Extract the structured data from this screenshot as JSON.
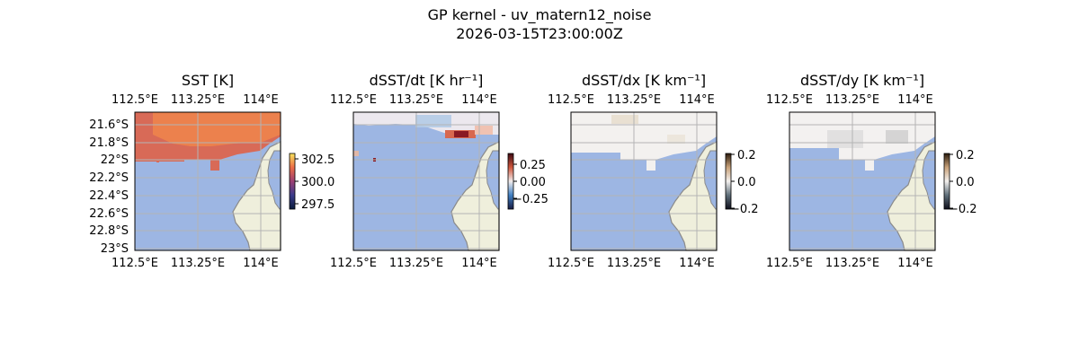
{
  "figure": {
    "title_line1": "GP kernel - uv_matern12_noise",
    "title_line2": "2026-03-15T23:00:00Z"
  },
  "colors": {
    "ocean": "#9db6e3",
    "land": "#efefdc",
    "coast": "#8a8a8a",
    "grid": "#b4b4b4"
  },
  "chart_data": [
    {
      "type": "heatmap",
      "title": "SST [K]",
      "x_ticks": [
        "112.5°E",
        "113.25°E",
        "114°E"
      ],
      "y_ticks": [
        "21.6°S",
        "21.8°S",
        "22°S",
        "22.2°S",
        "22.4°S",
        "22.6°S",
        "22.8°S",
        "23°S"
      ],
      "xlim": [
        112.5,
        114.25
      ],
      "ylim": [
        -23.0,
        -21.45
      ],
      "colorbar": {
        "ticks": [
          "302.5",
          "300.0",
          "297.5"
        ],
        "range": [
          297.0,
          303.0
        ],
        "colormap": "thermal"
      },
      "field": "sst"
    },
    {
      "type": "heatmap",
      "title": "dSST/dt [K hr⁻¹]",
      "x_ticks": [
        "112.5°E",
        "113.25°E",
        "114°E"
      ],
      "xlim": [
        112.5,
        114.25
      ],
      "ylim": [
        -23.0,
        -21.45
      ],
      "colorbar": {
        "ticks": [
          "0.25",
          "0.00",
          "−0.25"
        ],
        "range": [
          -0.4,
          0.4
        ],
        "colormap": "balance"
      },
      "field": "dsst_dt"
    },
    {
      "type": "heatmap",
      "title": "dSST/dx [K km⁻¹]",
      "x_ticks": [
        "112.5°E",
        "113.25°E",
        "114°E"
      ],
      "xlim": [
        112.5,
        114.25
      ],
      "ylim": [
        -23.0,
        -21.45
      ],
      "colorbar": {
        "ticks": [
          "0.2",
          "0.0",
          "−0.2"
        ],
        "range": [
          -0.2,
          0.2
        ],
        "colormap": "diverging-gray"
      },
      "field": "dsst_dx"
    },
    {
      "type": "heatmap",
      "title": "dSST/dy [K km⁻¹]",
      "x_ticks": [
        "112.5°E",
        "113.25°E",
        "114°E"
      ],
      "xlim": [
        112.5,
        114.25
      ],
      "ylim": [
        -23.0,
        -21.45
      ],
      "colorbar": {
        "ticks": [
          "0.2",
          "0.0",
          "−0.2"
        ],
        "range": [
          -0.2,
          0.2
        ],
        "colormap": "diverging-gray"
      },
      "field": "dsst_dy"
    }
  ]
}
